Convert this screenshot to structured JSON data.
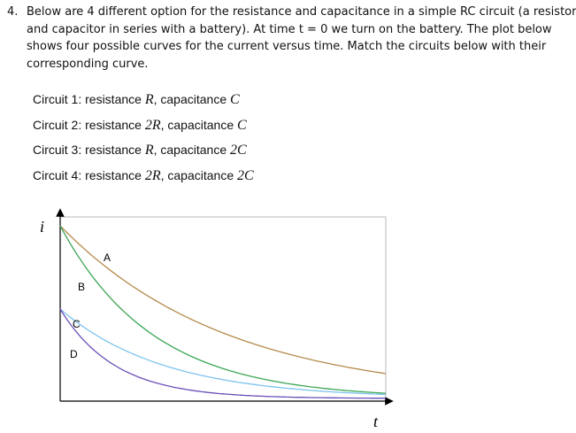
{
  "question": {
    "number": "4.",
    "lines": [
      "Below are 4 different option for the resistance and capacitance in a simple RC circuit (a resistor",
      "and capacitor in series with a battery). At time t = 0 we turn on the battery. The plot below",
      "shows four possible curves for the current versus time. Match the circuits below with their",
      "corresponding curve."
    ]
  },
  "circuits": [
    {
      "prefix": "Circuit 1: resistance ",
      "r": "R",
      "mid": ", capacitance ",
      "c": "C"
    },
    {
      "prefix": "Circuit 2: resistance ",
      "r": "2R",
      "mid": ", capacitance ",
      "c": "C"
    },
    {
      "prefix": "Circuit 3: resistance ",
      "r": "R",
      "mid": ", capacitance ",
      "c": "2C"
    },
    {
      "prefix": "Circuit 4: resistance ",
      "r": "2R",
      "mid": ", capacitance ",
      "c": "2C"
    }
  ],
  "plot": {
    "y_label": "i",
    "x_label": "t",
    "curve_labels": [
      "A",
      "B",
      "C",
      "D"
    ]
  }
}
